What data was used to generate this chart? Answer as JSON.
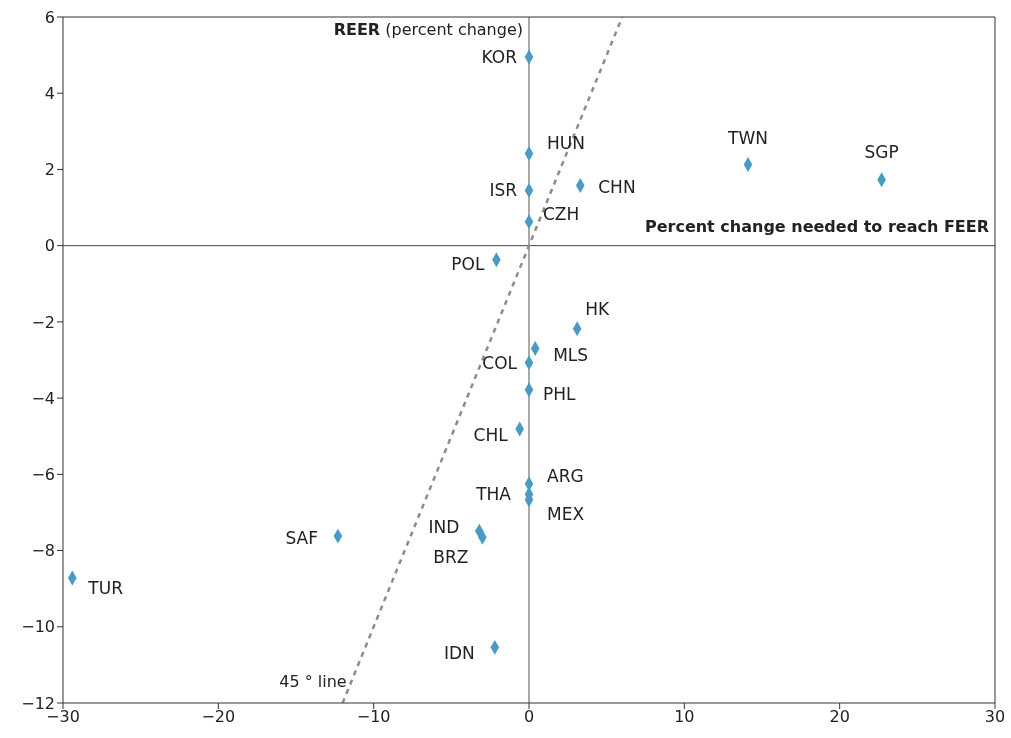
{
  "chart_data": {
    "type": "scatter",
    "xlabel": "Percent change needed to reach FEER",
    "ylabel": "REER (percent change)",
    "xlim": [
      -30,
      30
    ],
    "xticks": [
      -30,
      -20,
      -10,
      0,
      10,
      20,
      30
    ],
    "ylim": [
      -12,
      6
    ],
    "yticks": [
      -12,
      -10,
      -8,
      -6,
      -4,
      -2,
      0,
      2,
      4,
      6
    ],
    "marker": "diamond",
    "ref_lines": [
      {
        "axis": "x",
        "value": 0,
        "color": "#555555"
      },
      {
        "axis": "y",
        "value": 0,
        "color": "#444444"
      }
    ],
    "annotations": [
      "45 ° line"
    ],
    "series": [
      {
        "name": "KOR",
        "color": "#4a9bc4",
        "x": [
          0
        ],
        "values": [
          4.95
        ]
      },
      {
        "name": "HUN",
        "color": "#4a9bc4",
        "x": [
          0
        ],
        "values": [
          2.42
        ]
      },
      {
        "name": "ISR",
        "color": "#4a9bc4",
        "x": [
          0
        ],
        "values": [
          1.45
        ]
      },
      {
        "name": "CHN",
        "color": "#4a9bc4",
        "x": [
          3.3
        ],
        "values": [
          1.58
        ]
      },
      {
        "name": "CZH",
        "color": "#4a9bc4",
        "x": [
          0
        ],
        "values": [
          0.63
        ]
      },
      {
        "name": "TWN",
        "color": "#4a9bc4",
        "x": [
          14.1
        ],
        "values": [
          2.13
        ]
      },
      {
        "name": "SGP",
        "color": "#4a9bc4",
        "x": [
          22.7
        ],
        "values": [
          1.73
        ]
      },
      {
        "name": "POL",
        "color": "#4a9bc4",
        "x": [
          -2.1
        ],
        "values": [
          -0.37
        ]
      },
      {
        "name": "HK",
        "color": "#4a9bc4",
        "x": [
          3.1
        ],
        "values": [
          -2.18
        ]
      },
      {
        "name": "MLS",
        "color": "#4a9bc4",
        "x": [
          0.4
        ],
        "values": [
          -2.7
        ]
      },
      {
        "name": "COL",
        "color": "#4a9bc4",
        "x": [
          0
        ],
        "values": [
          -3.07
        ]
      },
      {
        "name": "PHL",
        "color": "#4a9bc4",
        "x": [
          0
        ],
        "values": [
          -3.78
        ]
      },
      {
        "name": "CHL",
        "color": "#4a9bc4",
        "x": [
          -0.6
        ],
        "values": [
          -4.81
        ]
      },
      {
        "name": "ARG",
        "color": "#4a9bc4",
        "x": [
          0
        ],
        "values": [
          -6.25
        ]
      },
      {
        "name": "THA",
        "color": "#4a9bc4",
        "x": [
          0
        ],
        "values": [
          -6.52
        ]
      },
      {
        "name": "MEX",
        "color": "#4a9bc4",
        "x": [
          0
        ],
        "values": [
          -6.67
        ]
      },
      {
        "name": "SAF",
        "color": "#4a9bc4",
        "x": [
          -12.3
        ],
        "values": [
          -7.62
        ]
      },
      {
        "name": "IND",
        "color": "#4a9bc4",
        "x": [
          -3.2
        ],
        "values": [
          -7.49
        ]
      },
      {
        "name": "BRZ",
        "color": "#4a9bc4",
        "x": [
          -3.0
        ],
        "values": [
          -7.65
        ]
      },
      {
        "name": "TUR",
        "color": "#4a9bc4",
        "x": [
          -29.4
        ],
        "values": [
          -8.72
        ]
      },
      {
        "name": "IDN",
        "color": "#4a9bc4",
        "x": [
          -2.2
        ],
        "values": [
          -10.54
        ]
      },
      {
        "type": "line",
        "color": "#8c8c8c",
        "line_style": "dashed",
        "marker": "none",
        "x": [
          -12,
          6
        ],
        "values": [
          -12,
          6
        ]
      }
    ]
  }
}
